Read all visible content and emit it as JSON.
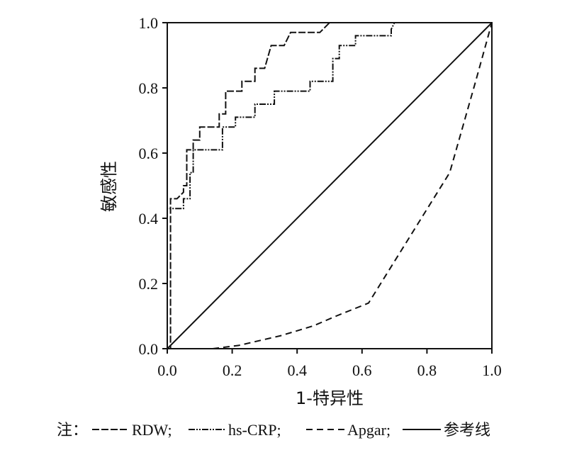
{
  "chart_data": {
    "type": "line",
    "xlabel": "1-特异性",
    "ylabel": "敏感性",
    "xlim": [
      0,
      1
    ],
    "ylim": [
      0,
      1
    ],
    "x_ticks": [
      "0.0",
      "0.2",
      "0.4",
      "0.6",
      "0.8",
      "1.0"
    ],
    "y_ticks": [
      "0.0",
      "0.2",
      "0.4",
      "0.6",
      "0.8",
      "1.0"
    ],
    "grid": false,
    "legend_prefix": "注：",
    "legend_position": "bottom",
    "series": [
      {
        "name": "RDW;",
        "style": "long-dash",
        "points": [
          [
            0,
            0
          ],
          [
            0.01,
            0
          ],
          [
            0.01,
            0.46
          ],
          [
            0.03,
            0.46
          ],
          [
            0.05,
            0.48
          ],
          [
            0.05,
            0.5
          ],
          [
            0.06,
            0.5
          ],
          [
            0.06,
            0.61
          ],
          [
            0.08,
            0.61
          ],
          [
            0.08,
            0.64
          ],
          [
            0.1,
            0.64
          ],
          [
            0.1,
            0.68
          ],
          [
            0.16,
            0.68
          ],
          [
            0.16,
            0.72
          ],
          [
            0.18,
            0.72
          ],
          [
            0.18,
            0.79
          ],
          [
            0.23,
            0.79
          ],
          [
            0.23,
            0.82
          ],
          [
            0.27,
            0.82
          ],
          [
            0.27,
            0.86
          ],
          [
            0.3,
            0.86
          ],
          [
            0.32,
            0.93
          ],
          [
            0.36,
            0.93
          ],
          [
            0.38,
            0.97
          ],
          [
            0.47,
            0.97
          ],
          [
            0.5,
            1
          ],
          [
            1,
            1
          ]
        ]
      },
      {
        "name": "hs-CRP;",
        "style": "dash-dot-dot",
        "points": [
          [
            0,
            0
          ],
          [
            0,
            0.43
          ],
          [
            0.05,
            0.43
          ],
          [
            0.05,
            0.46
          ],
          [
            0.07,
            0.46
          ],
          [
            0.07,
            0.54
          ],
          [
            0.08,
            0.54
          ],
          [
            0.08,
            0.61
          ],
          [
            0.17,
            0.61
          ],
          [
            0.17,
            0.68
          ],
          [
            0.21,
            0.68
          ],
          [
            0.21,
            0.71
          ],
          [
            0.27,
            0.71
          ],
          [
            0.27,
            0.75
          ],
          [
            0.33,
            0.75
          ],
          [
            0.33,
            0.79
          ],
          [
            0.44,
            0.79
          ],
          [
            0.44,
            0.82
          ],
          [
            0.51,
            0.82
          ],
          [
            0.51,
            0.89
          ],
          [
            0.53,
            0.89
          ],
          [
            0.53,
            0.93
          ],
          [
            0.58,
            0.93
          ],
          [
            0.58,
            0.96
          ],
          [
            0.69,
            0.96
          ],
          [
            0.69,
            0.98
          ],
          [
            0.7,
            1
          ],
          [
            1,
            1
          ]
        ]
      },
      {
        "name": "Apgar;",
        "style": "dash",
        "points": [
          [
            0.14,
            0
          ],
          [
            0.22,
            0.01
          ],
          [
            0.35,
            0.04
          ],
          [
            0.45,
            0.07
          ],
          [
            0.52,
            0.1
          ],
          [
            0.62,
            0.14
          ],
          [
            0.87,
            0.54
          ],
          [
            0.95,
            0.82
          ],
          [
            1,
            1
          ]
        ]
      },
      {
        "name": "参考线",
        "style": "solid",
        "points": [
          [
            0,
            0
          ],
          [
            1,
            1
          ]
        ]
      }
    ]
  }
}
